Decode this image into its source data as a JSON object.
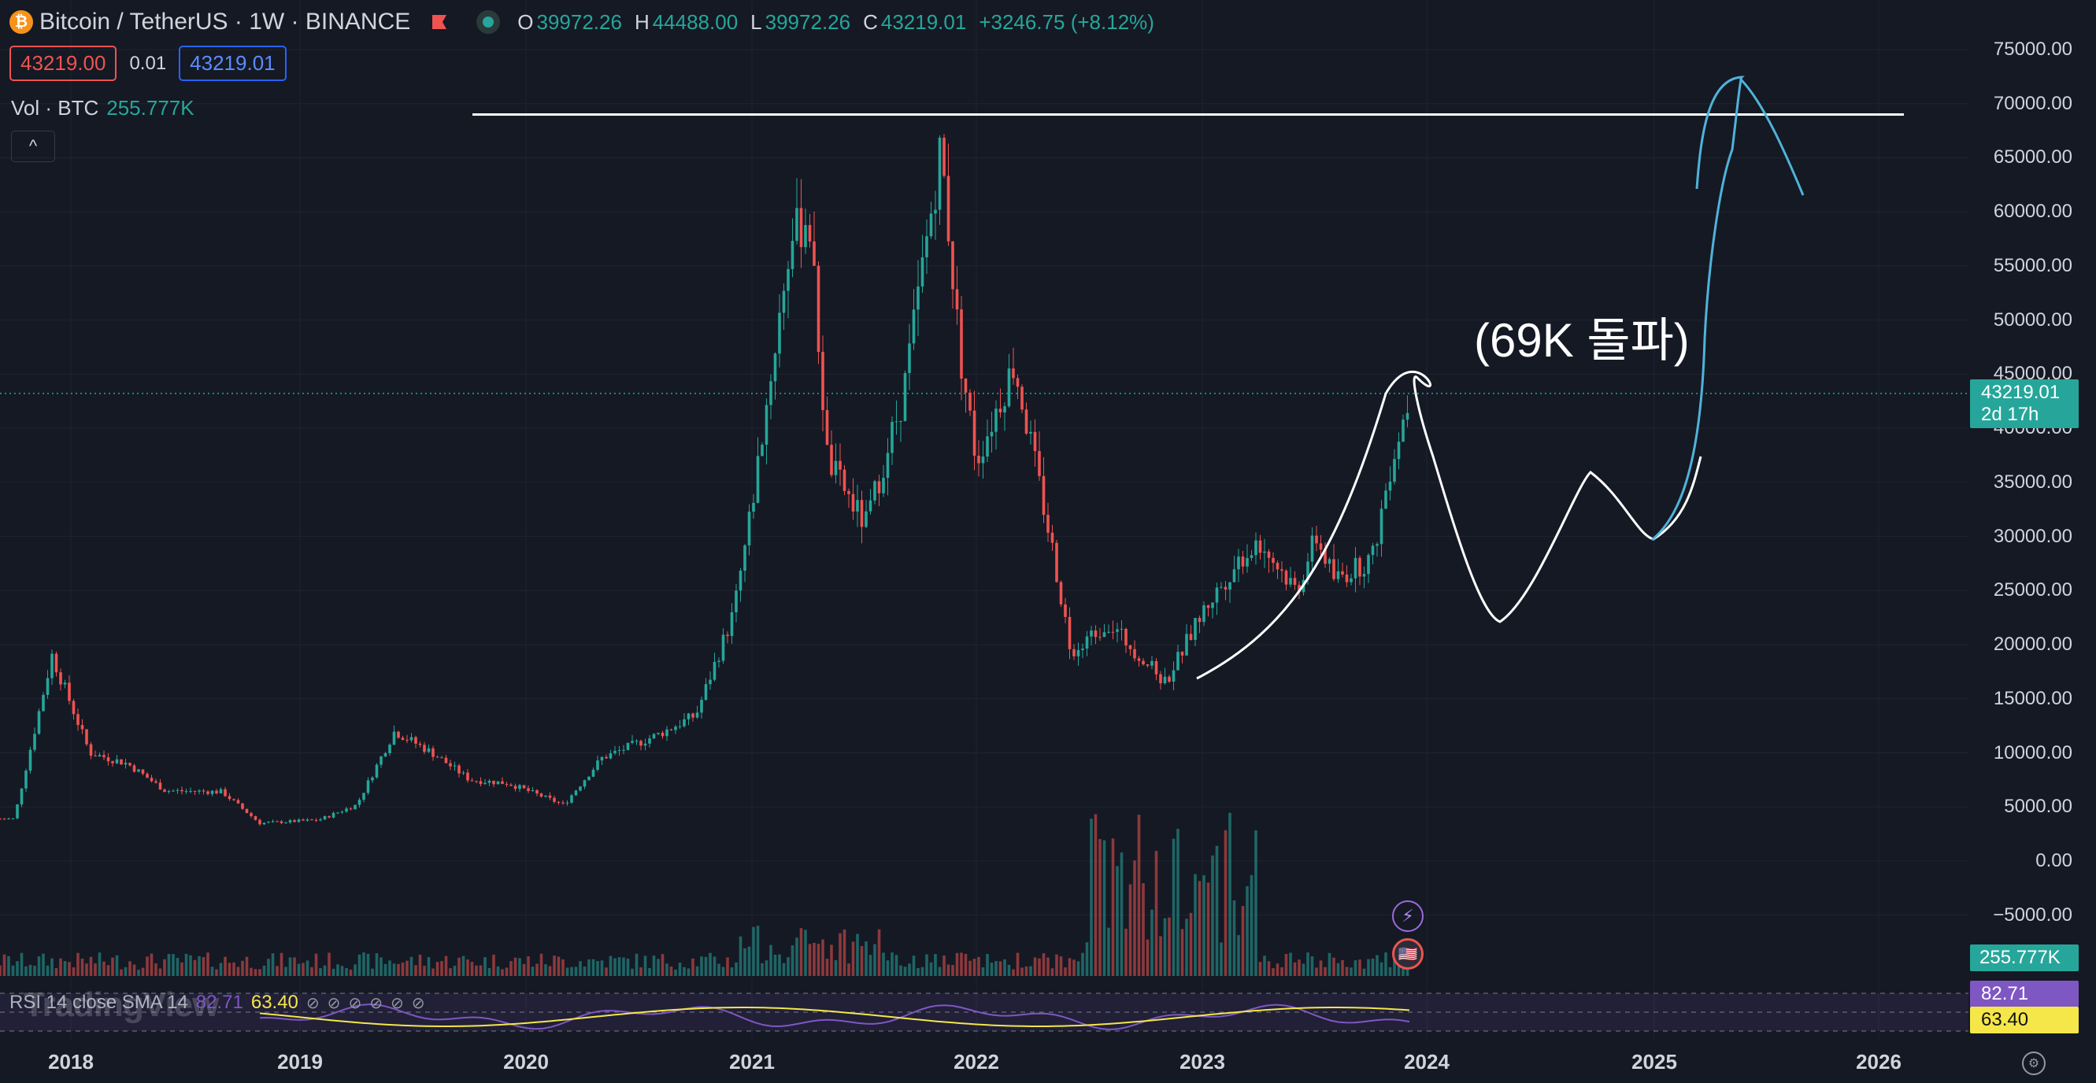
{
  "header": {
    "symbol": "Bitcoin / TetherUS · 1W · BINANCE",
    "coin_icon": "₿",
    "ohlc": {
      "o_label": "O",
      "o": "39972.26",
      "h_label": "H",
      "h": "44488.00",
      "l_label": "L",
      "l": "39972.26",
      "c_label": "C",
      "c": "43219.01",
      "change": "+3246.75 (+8.12%)"
    }
  },
  "trade": {
    "sell": "43219.00",
    "spread": "0.01",
    "buy": "43219.01"
  },
  "volume": {
    "label": "Vol · BTC",
    "value": "255.777K"
  },
  "collapse_icon": "^",
  "y_axis": {
    "labels": [
      "75000.00",
      "70000.00",
      "65000.00",
      "60000.00",
      "55000.00",
      "50000.00",
      "45000.00",
      "40000.00",
      "35000.00",
      "30000.00",
      "25000.00",
      "20000.00",
      "15000.00",
      "10000.00",
      "5000.00",
      "0.00",
      "−5000.00"
    ],
    "values": [
      75000,
      70000,
      65000,
      60000,
      55000,
      50000,
      45000,
      40000,
      35000,
      30000,
      25000,
      20000,
      15000,
      10000,
      5000,
      0,
      -5000
    ]
  },
  "last_price": {
    "price": "43219.01",
    "countdown": "2d 17h"
  },
  "volume_tag": "255.777K",
  "x_axis": {
    "labels": [
      "2018",
      "2019",
      "2020",
      "2021",
      "2022",
      "2023",
      "2024",
      "2025",
      "2026"
    ]
  },
  "rsi": {
    "label": "RSI 14 close SMA 14",
    "rsi_value": "82.71",
    "sma_value": "63.40",
    "icons": [
      "⊘",
      "⊘",
      "⊘",
      "⊘",
      "⊘",
      "⊘"
    ]
  },
  "watermark": "TradingView",
  "annotation": "(69K 돌파)",
  "colors": {
    "up": "#26a69a",
    "down": "#ef5350",
    "bg": "#151924",
    "drawing_white": "#ffffff",
    "drawing_blue": "#4fb3d9",
    "rsi_line": "#7e57c2",
    "rsi_sma": "#f5e64a"
  },
  "chart_data": {
    "type": "line",
    "title": "Bitcoin / TetherUS · 1W · BINANCE",
    "ylim": [
      -8000,
      77000
    ],
    "x": [
      "2017-10",
      "2017-12",
      "2018-02",
      "2018-04",
      "2018-06",
      "2018-09",
      "2018-11",
      "2019-02",
      "2019-04",
      "2019-06",
      "2019-08",
      "2019-10",
      "2019-12",
      "2020-03",
      "2020-05",
      "2020-08",
      "2020-10",
      "2020-12",
      "2021-01",
      "2021-03",
      "2021-04",
      "2021-05",
      "2021-07",
      "2021-09",
      "2021-11",
      "2021-12",
      "2022-01",
      "2022-03",
      "2022-05",
      "2022-06",
      "2022-08",
      "2022-11",
      "2023-01",
      "2023-03",
      "2023-04",
      "2023-06",
      "2023-07",
      "2023-08",
      "2023-10",
      "2023-11",
      "2023-12"
    ],
    "series": [
      {
        "values": [
          3900,
          19000,
          10000,
          9000,
          6500,
          6400,
          3500,
          3800,
          5200,
          12000,
          10000,
          7500,
          7200,
          5200,
          9500,
          11700,
          13500,
          23000,
          33000,
          57000,
          60000,
          37000,
          31000,
          43000,
          66000,
          47000,
          37000,
          46000,
          29000,
          19500,
          22000,
          16500,
          23000,
          28000,
          29500,
          25000,
          30000,
          26000,
          28000,
          37000,
          43219
        ]
      }
    ],
    "resistance_level": 69000,
    "rsi_last": 82.71,
    "rsi_sma_last": 63.4
  }
}
